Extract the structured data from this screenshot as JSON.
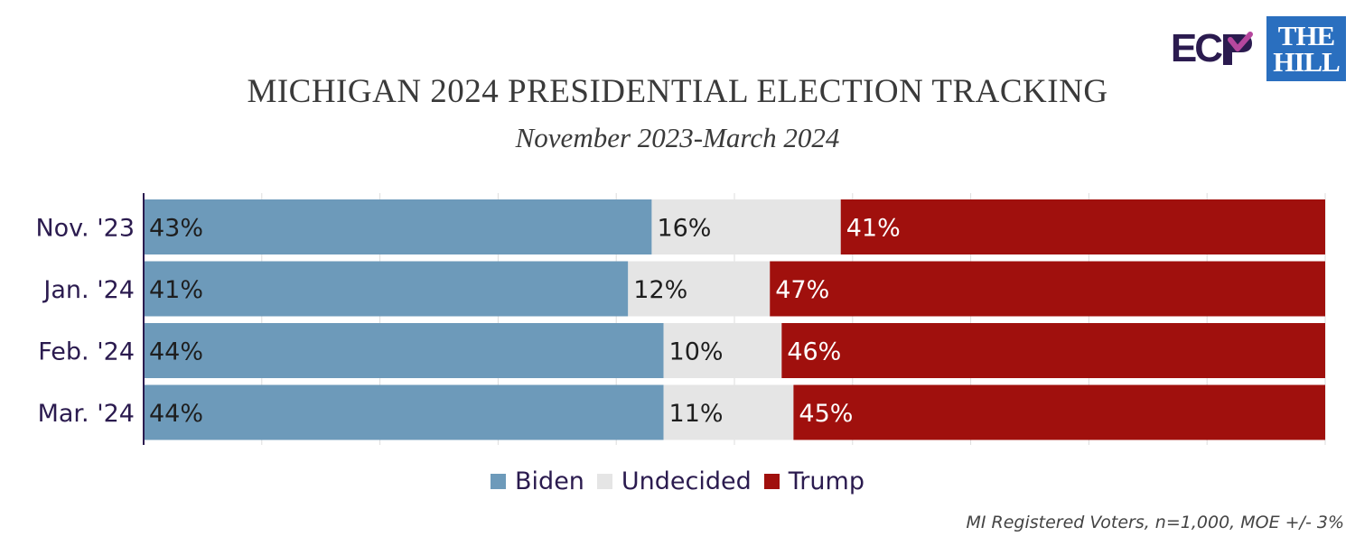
{
  "logos": {
    "ecp_text": "EC",
    "hill_line1": "THE",
    "hill_line2": "HILL"
  },
  "colors": {
    "biden": "#6d9aba",
    "undecided": "#e5e5e5",
    "trump": "#a0100d",
    "hill_blue": "#2a6fbf",
    "ecp_purple": "#2b1b4f"
  },
  "chart_data": {
    "type": "bar",
    "orientation": "horizontal-stacked-100",
    "title": "MICHIGAN 2024 PRESIDENTIAL ELECTION TRACKING",
    "subtitle": "November 2023-March 2024",
    "categories": [
      "Nov. '23",
      "Jan. '24",
      "Feb. '24",
      "Mar. '24"
    ],
    "series": [
      {
        "name": "Biden",
        "values": [
          43,
          41,
          44,
          44
        ],
        "labels": [
          "43%",
          "41%",
          "44%",
          "44%"
        ]
      },
      {
        "name": "Undecided",
        "values": [
          16,
          12,
          10,
          11
        ],
        "labels": [
          "16%",
          "12%",
          "10%",
          "11%"
        ]
      },
      {
        "name": "Trump",
        "values": [
          41,
          47,
          46,
          45
        ],
        "labels": [
          "41%",
          "47%",
          "46%",
          "45%"
        ]
      }
    ],
    "xlim": [
      0,
      100
    ],
    "grid": true,
    "legend": "bottom-center",
    "note": "MI Registered Voters, n=1,000, MOE +/- 3%"
  }
}
